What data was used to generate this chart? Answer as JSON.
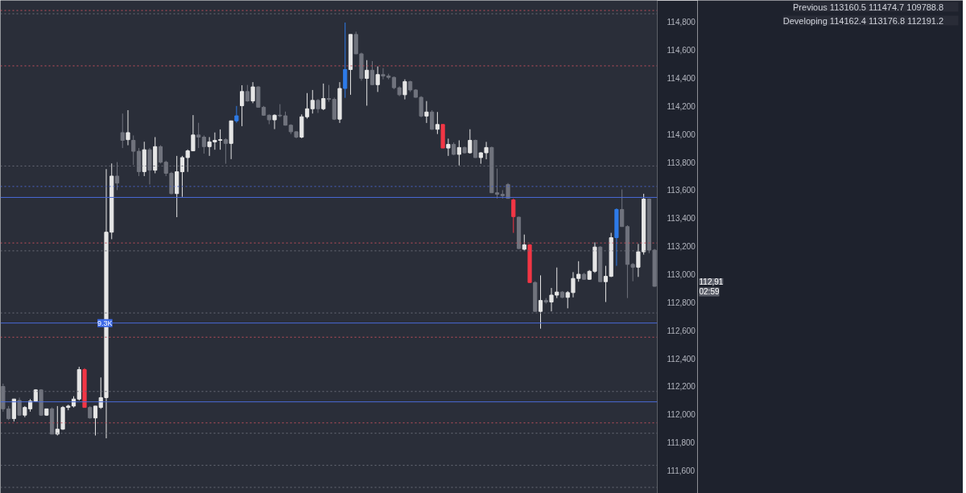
{
  "chart_data": {
    "type": "candlestick",
    "categories": [
      null,
      null,
      null,
      null,
      null,
      null,
      null,
      null,
      null,
      null,
      null,
      null,
      null,
      null,
      null,
      null,
      null,
      null,
      null,
      null,
      null,
      null,
      null,
      null,
      null,
      null,
      null,
      null,
      null,
      null,
      null,
      null,
      null,
      null,
      null,
      null,
      null,
      null,
      null,
      null,
      null,
      null,
      null,
      null,
      null,
      null,
      null,
      null,
      null,
      null,
      null,
      null,
      null,
      null,
      null,
      null,
      null,
      null,
      null,
      null,
      null,
      null,
      null,
      null,
      null,
      null,
      null,
      null,
      null,
      null,
      null,
      null,
      null,
      null,
      null,
      null,
      null,
      null,
      null,
      null,
      null,
      null,
      null,
      null,
      null,
      null,
      null,
      null,
      null,
      null,
      null,
      null,
      null,
      null,
      null,
      null,
      null,
      null,
      null,
      null,
      null,
      null,
      null,
      null,
      null,
      null,
      null,
      null,
      null,
      null,
      null,
      null,
      null,
      null,
      null,
      null,
      null,
      null,
      null,
      null,
      null
    ],
    "ohlc": [
      [
        112200,
        112220,
        112020,
        112040
      ],
      [
        112040,
        112060,
        111960,
        111970
      ],
      [
        111970,
        112110,
        111950,
        112110
      ],
      [
        112100,
        112120,
        111990,
        111995
      ],
      [
        111995,
        112060,
        111980,
        112050
      ],
      [
        112040,
        112110,
        112020,
        112095
      ],
      [
        112095,
        112180,
        112090,
        112175
      ],
      [
        112175,
        112180,
        111990,
        111995
      ],
      [
        111995,
        112040,
        111990,
        112040
      ],
      [
        112040,
        112050,
        111860,
        111860
      ],
      [
        111860,
        112060,
        111850,
        111895
      ],
      [
        111895,
        112060,
        111890,
        112050
      ],
      [
        112050,
        112070,
        112030,
        112060
      ],
      [
        112060,
        112130,
        112050,
        112110
      ],
      [
        112110,
        112340,
        112100,
        112320
      ],
      [
        112320,
        112330,
        112050,
        112050
      ],
      [
        112050,
        112060,
        111970,
        111975
      ],
      [
        111975,
        112060,
        111850,
        112060
      ],
      [
        112050,
        112264,
        112040,
        112120
      ],
      [
        112120,
        113750,
        111830,
        113300
      ],
      [
        113300,
        113790,
        113250,
        113700
      ],
      [
        113700,
        113800,
        113600,
        113650
      ],
      [
        114010,
        114146,
        113900,
        113955
      ],
      [
        113960,
        114170,
        113920,
        114010
      ],
      [
        113955,
        113990,
        113780,
        113877
      ],
      [
        113877,
        113900,
        113700,
        113732
      ],
      [
        113732,
        113945,
        113700,
        113888
      ],
      [
        113888,
        113900,
        113640,
        113742
      ],
      [
        113742,
        113978,
        113720,
        113910
      ],
      [
        113910,
        113920,
        113790,
        113799
      ],
      [
        113799,
        113810,
        113700,
        113720
      ],
      [
        113720,
        113730,
        113570,
        113575
      ],
      [
        113575,
        113844,
        113407,
        113731
      ],
      [
        113731,
        113844,
        113552,
        113832
      ],
      [
        113832,
        113890,
        113730,
        113880
      ],
      [
        113880,
        114135,
        113880,
        113993
      ],
      [
        113993,
        114080,
        113900,
        113978
      ],
      [
        113978,
        113990,
        113860,
        113910
      ],
      [
        113910,
        113978,
        113844,
        113944
      ],
      [
        113944,
        114011,
        113888,
        113955
      ],
      [
        113955,
        114033,
        113888,
        113960
      ],
      [
        113960,
        113970,
        113788,
        113933
      ],
      [
        113933,
        114094,
        113821,
        114094
      ],
      [
        114094,
        114200,
        114080,
        114130
      ],
      [
        114202,
        114348,
        114056,
        114303
      ],
      [
        114303,
        114350,
        114230,
        114236
      ],
      [
        114236,
        114370,
        114220,
        114336
      ],
      [
        114336,
        114340,
        114190,
        114191
      ],
      [
        114191,
        114200,
        114130,
        114134
      ],
      [
        114134,
        114140,
        114070,
        114101
      ],
      [
        114101,
        114140,
        114035,
        114134
      ],
      [
        114134,
        114213,
        114120,
        114130
      ],
      [
        114130,
        114160,
        114060,
        114063
      ],
      [
        114063,
        114070,
        114000,
        114016
      ],
      [
        114016,
        114020,
        113970,
        113978
      ],
      [
        113978,
        114140,
        113970,
        114123
      ],
      [
        114123,
        114292,
        114110,
        114180
      ],
      [
        114180,
        114314,
        114146,
        114240
      ],
      [
        114240,
        114250,
        114150,
        114180
      ],
      [
        114180,
        114360,
        114170,
        114253
      ],
      [
        114253,
        114350,
        114230,
        114247
      ],
      [
        114247,
        114260,
        114100,
        114106
      ],
      [
        114106,
        114370,
        114079,
        114325
      ],
      [
        114325,
        114795,
        114258,
        114460
      ],
      [
        114460,
        114710,
        114280,
        114710
      ],
      [
        114710,
        114730,
        114570,
        114572
      ],
      [
        114572,
        114580,
        114380,
        114397
      ],
      [
        114397,
        114527,
        114202,
        114455
      ],
      [
        114455,
        114520,
        114350,
        114352
      ],
      [
        114352,
        114482,
        114300,
        114424
      ],
      [
        114424,
        114470,
        114390,
        114414
      ],
      [
        114414,
        114430,
        114390,
        114404
      ],
      [
        114404,
        114410,
        114320,
        114330
      ],
      [
        114330,
        114340,
        114270,
        114280
      ],
      [
        114280,
        114390,
        114247,
        114374
      ],
      [
        114374,
        114380,
        114300,
        114314
      ],
      [
        114314,
        114320,
        114260,
        114262
      ],
      [
        114262,
        114270,
        114120,
        114128
      ],
      [
        114128,
        114235,
        114079,
        114157
      ],
      [
        114157,
        114170,
        114030,
        114034
      ],
      [
        114034,
        114157,
        114000,
        114068
      ],
      [
        114068,
        114070,
        113900,
        113900
      ],
      [
        113900,
        113967,
        113844,
        113926
      ],
      [
        113926,
        113940,
        113850,
        113855
      ],
      [
        113855,
        113955,
        113776,
        113904
      ],
      [
        113904,
        113910,
        113860,
        113866
      ],
      [
        113866,
        114034,
        113860,
        113955
      ],
      [
        113955,
        113960,
        113830,
        113832
      ],
      [
        113832,
        113870,
        113788,
        113866
      ],
      [
        113866,
        113944,
        113820,
        113904
      ],
      [
        113904,
        113910,
        113580,
        113581
      ],
      [
        113581,
        113754,
        113540,
        113570
      ],
      [
        113570,
        113600,
        113540,
        113560
      ],
      [
        113640,
        113650,
        113540,
        113541
      ],
      [
        113530,
        113540,
        113295,
        113411
      ],
      [
        113407,
        113410,
        113180,
        113183
      ],
      [
        113178,
        113283,
        113170,
        113210
      ],
      [
        113210,
        113215,
        112940,
        112941
      ],
      [
        112941,
        112950,
        112735,
        112735
      ],
      [
        112735,
        112992,
        112612,
        112813
      ],
      [
        112813,
        112830,
        112790,
        112802
      ],
      [
        112802,
        112902,
        112735,
        112851
      ],
      [
        112851,
        113048,
        112830,
        112873
      ],
      [
        112873,
        112880,
        112830,
        112835
      ],
      [
        112835,
        112880,
        112757,
        112869
      ],
      [
        112869,
        113015,
        112835,
        112970
      ],
      [
        112970,
        113093,
        112947,
        113000
      ],
      [
        113000,
        113010,
        112960,
        112964
      ],
      [
        112964,
        113030,
        112960,
        113021
      ],
      [
        113021,
        113227,
        113010,
        113194
      ],
      [
        113194,
        113200,
        112947,
        112947
      ],
      [
        112947,
        113060,
        112802,
        112985
      ],
      [
        112985,
        113295,
        112980,
        113261
      ],
      [
        113261,
        113470,
        113060,
        113462
      ],
      [
        113462,
        113605,
        113340,
        113340
      ],
      [
        113340,
        113350,
        112830,
        113070
      ],
      [
        113070,
        113080,
        112950,
        113050
      ],
      [
        113050,
        113216,
        112981,
        113160
      ],
      [
        113160,
        113574,
        113140,
        113536
      ],
      [
        113536,
        113540,
        113150,
        113172
      ],
      [
        113172,
        113180,
        112912,
        112914
      ]
    ],
    "colors": [
      "#70737d",
      "#70737d",
      "#e6e6e6",
      "#70737d",
      "#e6e6e6",
      "#e6e6e6",
      "#e6e6e6",
      "#70737d",
      "#e6e6e6",
      "#70737d",
      "#e6e6e6",
      "#e6e6e6",
      "#e6e6e6",
      "#e6e6e6",
      "#e6e6e6",
      "#f23645",
      "#70737d",
      "#e6e6e6",
      "#e6e6e6",
      "#e6e6e6",
      "#e6e6e6",
      "#70737d",
      "#70737d",
      "#e6e6e6",
      "#70737d",
      "#70737d",
      "#e6e6e6",
      "#70737d",
      "#e6e6e6",
      "#70737d",
      "#70737d",
      "#70737d",
      "#e6e6e6",
      "#e6e6e6",
      "#e6e6e6",
      "#e6e6e6",
      "#70737d",
      "#70737d",
      "#e6e6e6",
      "#e6e6e6",
      "#e6e6e6",
      "#70737d",
      "#e6e6e6",
      "#2e7be8",
      "#e6e6e6",
      "#70737d",
      "#e6e6e6",
      "#70737d",
      "#70737d",
      "#70737d",
      "#e6e6e6",
      "#70737d",
      "#70737d",
      "#70737d",
      "#70737d",
      "#e6e6e6",
      "#e6e6e6",
      "#e6e6e6",
      "#70737d",
      "#e6e6e6",
      "#70737d",
      "#70737d",
      "#e6e6e6",
      "#2e7be8",
      "#e6e6e6",
      "#70737d",
      "#70737d",
      "#e6e6e6",
      "#70737d",
      "#e6e6e6",
      "#70737d",
      "#70737d",
      "#70737d",
      "#70737d",
      "#e6e6e6",
      "#70737d",
      "#70737d",
      "#70737d",
      "#e6e6e6",
      "#70737d",
      "#e6e6e6",
      "#f23645",
      "#e6e6e6",
      "#70737d",
      "#e6e6e6",
      "#70737d",
      "#e6e6e6",
      "#70737d",
      "#e6e6e6",
      "#e6e6e6",
      "#70737d",
      "#70737d",
      "#70737d",
      "#70737d",
      "#f23645",
      "#70737d",
      "#e6e6e6",
      "#f23645",
      "#70737d",
      "#e6e6e6",
      "#70737d",
      "#e6e6e6",
      "#e6e6e6",
      "#70737d",
      "#e6e6e6",
      "#e6e6e6",
      "#e6e6e6",
      "#70737d",
      "#e6e6e6",
      "#e6e6e6",
      "#70737d",
      "#e6e6e6",
      "#e6e6e6",
      "#2e7be8",
      "#70737d",
      "#70737d",
      "#70737d",
      "#e6e6e6",
      "#e6e6e6",
      "#70737d",
      "#70737d"
    ],
    "ylim": [
      111437,
      114953
    ],
    "yticks": [
      {
        "value": 111600,
        "label": "111,600"
      },
      {
        "value": 111800,
        "label": "111,800"
      },
      {
        "value": 112000,
        "label": "112,000"
      },
      {
        "value": 112200,
        "label": "112,200"
      },
      {
        "value": 112400,
        "label": "112,400"
      },
      {
        "value": 112600,
        "label": "112,600"
      },
      {
        "value": 112800,
        "label": "112,800"
      },
      {
        "value": 113000,
        "label": "113,000"
      },
      {
        "value": 113200,
        "label": "113,200"
      },
      {
        "value": 113400,
        "label": "113,400"
      },
      {
        "value": 113600,
        "label": "113,600"
      },
      {
        "value": 113800,
        "label": "113,800"
      },
      {
        "value": 114000,
        "label": "114,000"
      },
      {
        "value": 114200,
        "label": "114,200"
      },
      {
        "value": 114400,
        "label": "114,400"
      },
      {
        "value": 114600,
        "label": "114,600"
      },
      {
        "value": 114800,
        "label": "114,800"
      }
    ],
    "tick_labels": "y",
    "grid": false,
    "ref_lines": [
      {
        "axis": "y",
        "value": 114881,
        "color": "#c2505c",
        "line_style": "dotted"
      },
      {
        "axis": "y",
        "value": 114486,
        "color": "#c2505c",
        "line_style": "dotted"
      },
      {
        "axis": "y",
        "value": 113223,
        "color": "#c2505c",
        "line_style": "dotted"
      },
      {
        "axis": "y",
        "value": 112551,
        "color": "#c2505c",
        "line_style": "dotted"
      },
      {
        "axis": "y",
        "value": 111940,
        "color": "#c2505c",
        "line_style": "dotted"
      },
      {
        "axis": "y",
        "value": 114858,
        "color": "#6a6d78",
        "line_style": "dotted"
      },
      {
        "axis": "y",
        "value": 113772,
        "color": "#6a6d78",
        "line_style": "dotted"
      },
      {
        "axis": "y",
        "value": 113167,
        "color": "#6a6d78",
        "line_style": "dotted"
      },
      {
        "axis": "y",
        "value": 112724,
        "color": "#6a6d78",
        "line_style": "dotted"
      },
      {
        "axis": "y",
        "value": 112164,
        "color": "#6a6d78",
        "line_style": "dotted"
      },
      {
        "axis": "y",
        "value": 111866,
        "color": "#6a6d78",
        "line_style": "dotted"
      },
      {
        "axis": "y",
        "value": 111637,
        "color": "#6a6d78",
        "line_style": "dotted"
      },
      {
        "axis": "y",
        "value": 111480,
        "color": "#6a6d78",
        "line_style": "dotted"
      },
      {
        "axis": "y",
        "value": 113626,
        "color": "#4a63c8",
        "line_style": "dotted"
      },
      {
        "axis": "y",
        "value": 113548,
        "color": "#4a6ad8",
        "line_style": "solid"
      },
      {
        "axis": "y",
        "value": 112652,
        "color": "#4a6ad8",
        "line_style": "solid"
      },
      {
        "axis": "y",
        "value": 112090,
        "color": "#4a6ad8",
        "line_style": "solid"
      }
    ],
    "annotations": [
      "Previous   113160.5   111474.7   109788.8",
      "Developing   114162.4   113176.8   112191.2",
      "112,91",
      "02:59",
      {
        "text": "9.3K",
        "y": 112652
      }
    ]
  }
}
